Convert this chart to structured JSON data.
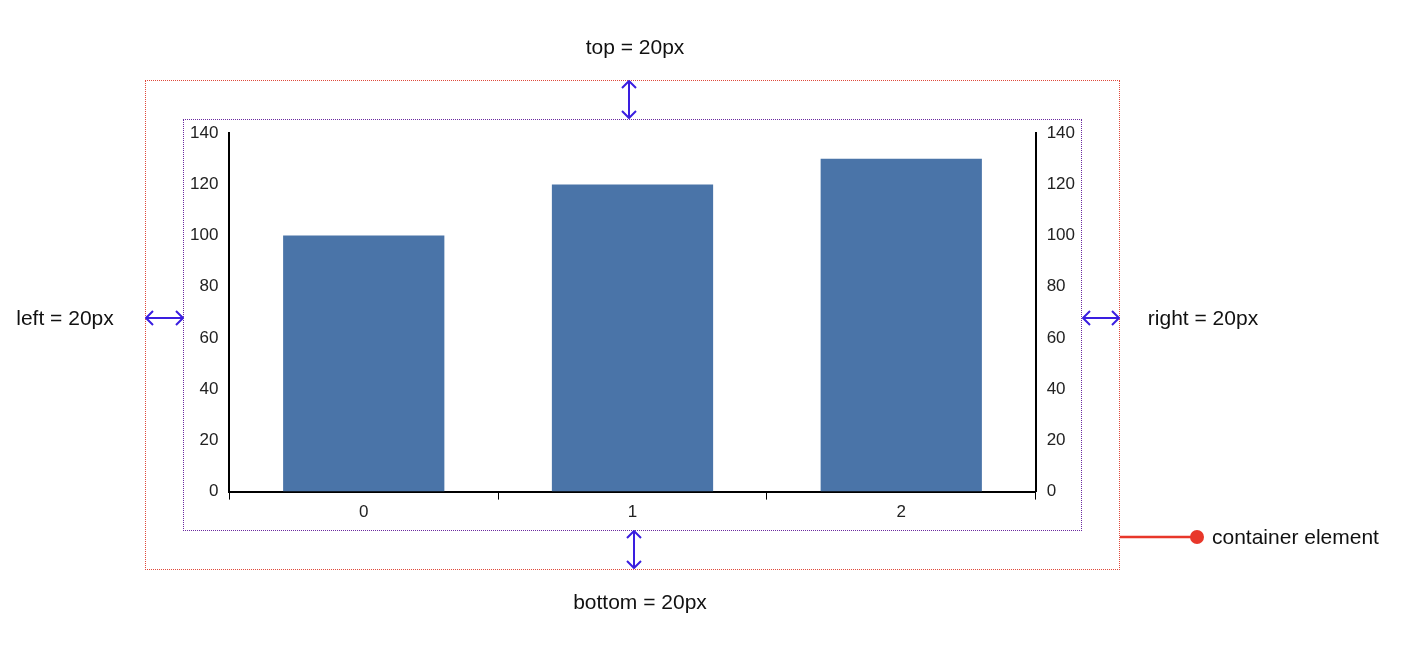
{
  "chart_data": {
    "type": "bar",
    "categories": [
      "0",
      "1",
      "2"
    ],
    "series": [
      {
        "color": "#4a74a8",
        "values": [
          100,
          120,
          130
        ]
      }
    ],
    "ylim": [
      0,
      140
    ],
    "yticks": [
      0,
      20,
      40,
      60,
      80,
      100,
      120,
      140
    ],
    "y2lim": [
      0,
      140
    ],
    "y2ticks": [
      0,
      20,
      40,
      60,
      80,
      100,
      120,
      140
    ],
    "grid": false,
    "legend": false,
    "annotations": [
      "top = 20px",
      "left = 20px",
      "right = 20px",
      "bottom = 20px",
      "container element"
    ]
  }
}
